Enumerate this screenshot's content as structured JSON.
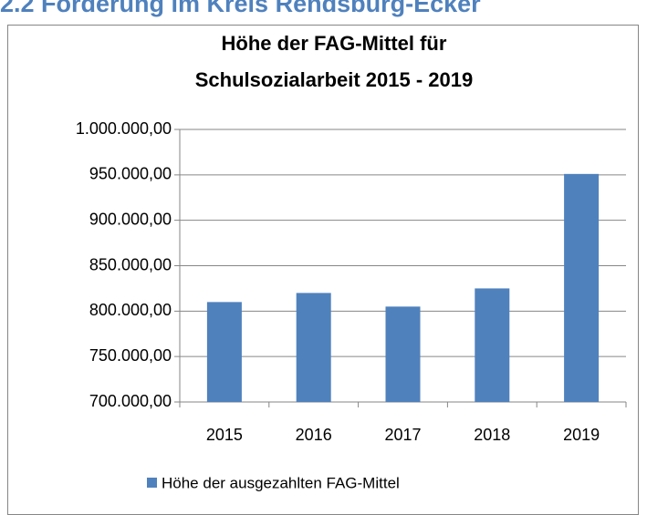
{
  "heading": "2.2   Förderung im Kreis Rendsburg-Ecker",
  "chart_data": {
    "type": "bar",
    "title": [
      "Höhe der FAG-Mittel für",
      "Schulsozialarbeit 2015 - 2019"
    ],
    "categories": [
      "2015",
      "2016",
      "2017",
      "2018",
      "2019"
    ],
    "series": [
      {
        "name": "Höhe der ausgezahlten FAG-Mittel",
        "color": "#4f81bd",
        "values": [
          810000,
          820000,
          805000,
          825000,
          951000
        ]
      }
    ],
    "ylim": [
      700000,
      1000000
    ],
    "yticks": [
      {
        "value": 700000,
        "label": "700.000,00"
      },
      {
        "value": 750000,
        "label": "750.000,00"
      },
      {
        "value": 800000,
        "label": "800.000,00"
      },
      {
        "value": 850000,
        "label": "850.000,00"
      },
      {
        "value": 900000,
        "label": "900.000,00"
      },
      {
        "value": 950000,
        "label": "950.000,00"
      },
      {
        "value": 1000000,
        "label": "1.000.000,00"
      }
    ],
    "grid": true,
    "legend": "bottom"
  }
}
